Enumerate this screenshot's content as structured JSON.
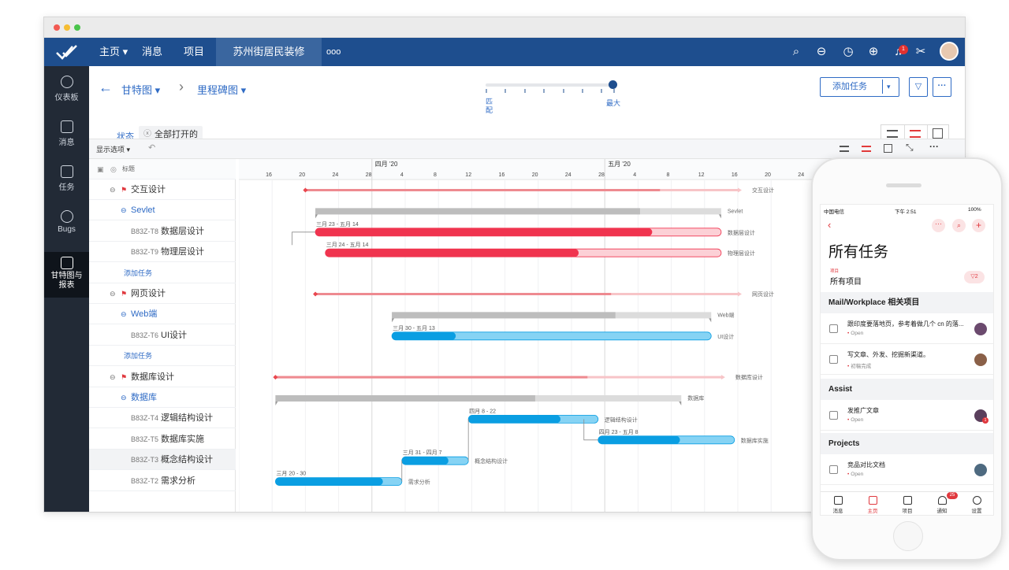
{
  "nav": {
    "home": "主页",
    "messages": "消息",
    "projects": "项目",
    "active_project": "苏州街居民装修",
    "more": "ooo",
    "notif_badge": "1"
  },
  "sidebar": {
    "items": [
      {
        "label": "仪表板",
        "icon": "dashboard-icon"
      },
      {
        "label": "消息",
        "icon": "message-icon"
      },
      {
        "label": "任务",
        "icon": "task-icon"
      },
      {
        "label": "Bugs",
        "icon": "bug-icon"
      },
      {
        "label": "甘特图与报表",
        "icon": "chart-icon"
      }
    ]
  },
  "header": {
    "breadcrumb_1": "甘特图",
    "breadcrumb_2": "里程碑图",
    "zoom_min": "匹配",
    "zoom_max": "最大",
    "zoom_level": 1.0,
    "status_label": "状态",
    "status_filter": "全部打开的",
    "add_task": "添加任务"
  },
  "toolbar": {
    "display_options": "显示选项"
  },
  "taskcol": {
    "header": "标题",
    "rows": [
      {
        "type": "group",
        "label": "交互设计"
      },
      {
        "type": "sub",
        "label": "Sevlet"
      },
      {
        "type": "task",
        "id": "B83Z-T8",
        "label": "数据层设计"
      },
      {
        "type": "task",
        "id": "B83Z-T9",
        "label": "物理层设计"
      },
      {
        "type": "add",
        "label": "添加任务"
      },
      {
        "type": "group",
        "label": "网页设计"
      },
      {
        "type": "sub",
        "label": "Web端"
      },
      {
        "type": "task",
        "id": "B83Z-T6",
        "label": "UI设计"
      },
      {
        "type": "add",
        "label": "添加任务"
      },
      {
        "type": "group",
        "label": "数据库设计"
      },
      {
        "type": "sub",
        "label": "数据库"
      },
      {
        "type": "task",
        "id": "B83Z-T4",
        "label": "逻辑结构设计"
      },
      {
        "type": "task",
        "id": "B83Z-T5",
        "label": "数据库实施"
      },
      {
        "type": "task",
        "id": "B83Z-T3",
        "label": "概念结构设计"
      },
      {
        "type": "task",
        "id": "B83Z-T2",
        "label": "需求分析"
      }
    ]
  },
  "gantt": {
    "months": [
      {
        "label": "四月 '20"
      },
      {
        "label": "五月 '20"
      }
    ],
    "ticks": [
      "16",
      "20",
      "24",
      "28",
      "4",
      "8",
      "12",
      "16",
      "20",
      "24",
      "28",
      "4",
      "8",
      "12",
      "16",
      "20",
      "24"
    ],
    "bars": [
      {
        "row": 0,
        "kind": "milestone",
        "color": "#e9474f",
        "start": 2,
        "end": 15,
        "progress": 0.82,
        "label": "交互设计"
      },
      {
        "row": 1,
        "kind": "summary",
        "start": 2.3,
        "end": 14.5,
        "progress": 0.8,
        "label": "Sevlet"
      },
      {
        "row": 2,
        "kind": "task",
        "color": "#f0344f",
        "start": 2.3,
        "end": 14.5,
        "progress": 0.83,
        "label": "数据层设计",
        "range": "三月 23 - 五月 14"
      },
      {
        "row": 3,
        "kind": "task",
        "color": "#f0344f",
        "start": 2.6,
        "end": 14.5,
        "progress": 0.64,
        "label": "物理层设计",
        "range": "三月 24 - 五月 14"
      },
      {
        "row": 5,
        "kind": "milestone",
        "color": "#e9474f",
        "start": 2.3,
        "end": 15,
        "progress": 0.7,
        "label": "网页设计"
      },
      {
        "row": 6,
        "kind": "summary",
        "start": 4.6,
        "end": 14.2,
        "progress": 0.7,
        "label": "Web端"
      },
      {
        "row": 7,
        "kind": "task",
        "color": "#0a9ee2",
        "start": 4.6,
        "end": 14.2,
        "progress": 0.2,
        "label": "UI设计",
        "range": "三月 30 - 五月 13"
      },
      {
        "row": 9,
        "kind": "milestone",
        "color": "#e9474f",
        "start": 1.1,
        "end": 14.5,
        "progress": 0.7,
        "label": "数据库设计"
      },
      {
        "row": 10,
        "kind": "summary",
        "start": 1.1,
        "end": 13.3,
        "progress": 0.64,
        "label": "数据库"
      },
      {
        "row": 11,
        "kind": "task",
        "color": "#0a9ee2",
        "start": 6.9,
        "end": 10.8,
        "progress": 0.71,
        "label": "逻辑结构设计",
        "range": "四月 8 - 22"
      },
      {
        "row": 12,
        "kind": "task",
        "color": "#0a9ee2",
        "start": 10.8,
        "end": 14.9,
        "progress": 0.6,
        "label": "数据库实施",
        "range": "四月 23 - 五月 8"
      },
      {
        "row": 13,
        "kind": "task",
        "color": "#0a9ee2",
        "start": 4.9,
        "end": 6.9,
        "progress": 0.7,
        "label": "概念结构设计",
        "range": "三月 31 - 四月 7"
      },
      {
        "row": 14,
        "kind": "task",
        "color": "#0a9ee2",
        "start": 1.1,
        "end": 4.9,
        "progress": 0.85,
        "label": "需求分析",
        "range": "三月 20 - 30"
      }
    ]
  },
  "phone": {
    "carrier": "中国电信",
    "time": "下午 2:51",
    "battery": "100%",
    "title": "所有任务",
    "project_label": "项目",
    "project_value": "所有项目",
    "filter_count": "2",
    "sections": [
      {
        "name": "Mail/Workplace 相关项目",
        "tasks": [
          {
            "title": "跟印度要落地页，参考着做几个 cn 的落...",
            "status": "Open"
          },
          {
            "title": "写文章、外发、挖掘新渠道。",
            "status": "初稿完成"
          }
        ]
      },
      {
        "name": "Assist",
        "tasks": [
          {
            "title": "发推广文章",
            "status": "Open"
          }
        ]
      },
      {
        "name": "Projects",
        "tasks": [
          {
            "title": "竞品对比文档",
            "status": "Open"
          }
        ]
      }
    ],
    "tabs": [
      "消息",
      "主页",
      "项目",
      "通知",
      "设置"
    ],
    "notif_badge": "25",
    "assist_badge": "1"
  }
}
